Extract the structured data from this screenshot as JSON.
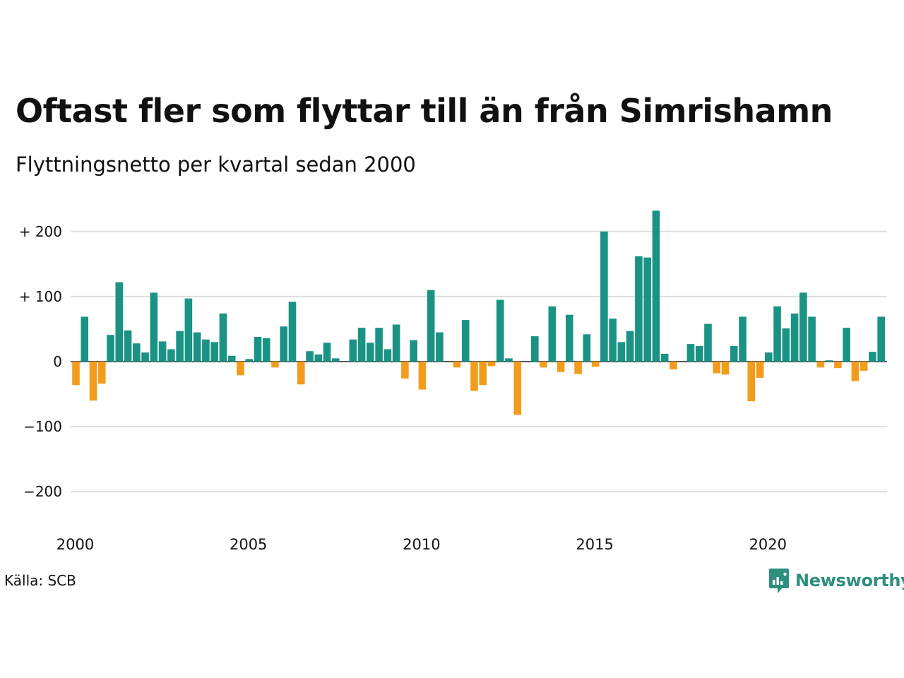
{
  "title": "Oftast fler som flyttar till än från Simrishamn",
  "subtitle": "Flyttningsnetto per kvartal sedan 2000",
  "source": "Källa: SCB",
  "brand": {
    "name": "Newsworthy",
    "icon": "newsworthy-logo-icon",
    "color": "#2e8f7e"
  },
  "chart_data": {
    "type": "bar",
    "title": "Oftast fler som flyttar till än från Simrishamn",
    "subtitle": "Flyttningsnetto per kvartal sedan 2000",
    "x_start": 2000,
    "x_step": 0.25,
    "xticks": [
      2000,
      2005,
      2010,
      2015,
      2020
    ],
    "yticks": [
      {
        "value": 200,
        "label": "+ 200"
      },
      {
        "value": 100,
        "label": "+ 100"
      },
      {
        "value": 0,
        "label": "0"
      },
      {
        "value": -100,
        "label": "−100"
      },
      {
        "value": -200,
        "label": "−200"
      }
    ],
    "ylim": [
      -230,
      232
    ],
    "positive_color": "#1a9385",
    "negative_color": "#f39c1c",
    "grid": true,
    "values": [
      -36,
      69,
      -60,
      -34,
      41,
      122,
      48,
      28,
      14,
      106,
      31,
      19,
      47,
      97,
      45,
      34,
      30,
      74,
      9,
      -21,
      4,
      38,
      36,
      -9,
      54,
      92,
      -35,
      16,
      11,
      29,
      5,
      0,
      34,
      52,
      29,
      52,
      19,
      57,
      -26,
      33,
      -43,
      110,
      45,
      0,
      -9,
      64,
      -45,
      -36,
      -7,
      95,
      5,
      -82,
      0,
      39,
      -9,
      85,
      -16,
      72,
      -19,
      42,
      -8,
      200,
      66,
      30,
      47,
      162,
      160,
      232,
      12,
      -12,
      0,
      27,
      24,
      58,
      -18,
      -20,
      24,
      69,
      -61,
      -25,
      14,
      85,
      51,
      74,
      106,
      69,
      -9,
      2,
      -10,
      52,
      -30,
      -14,
      15,
      69
    ]
  }
}
